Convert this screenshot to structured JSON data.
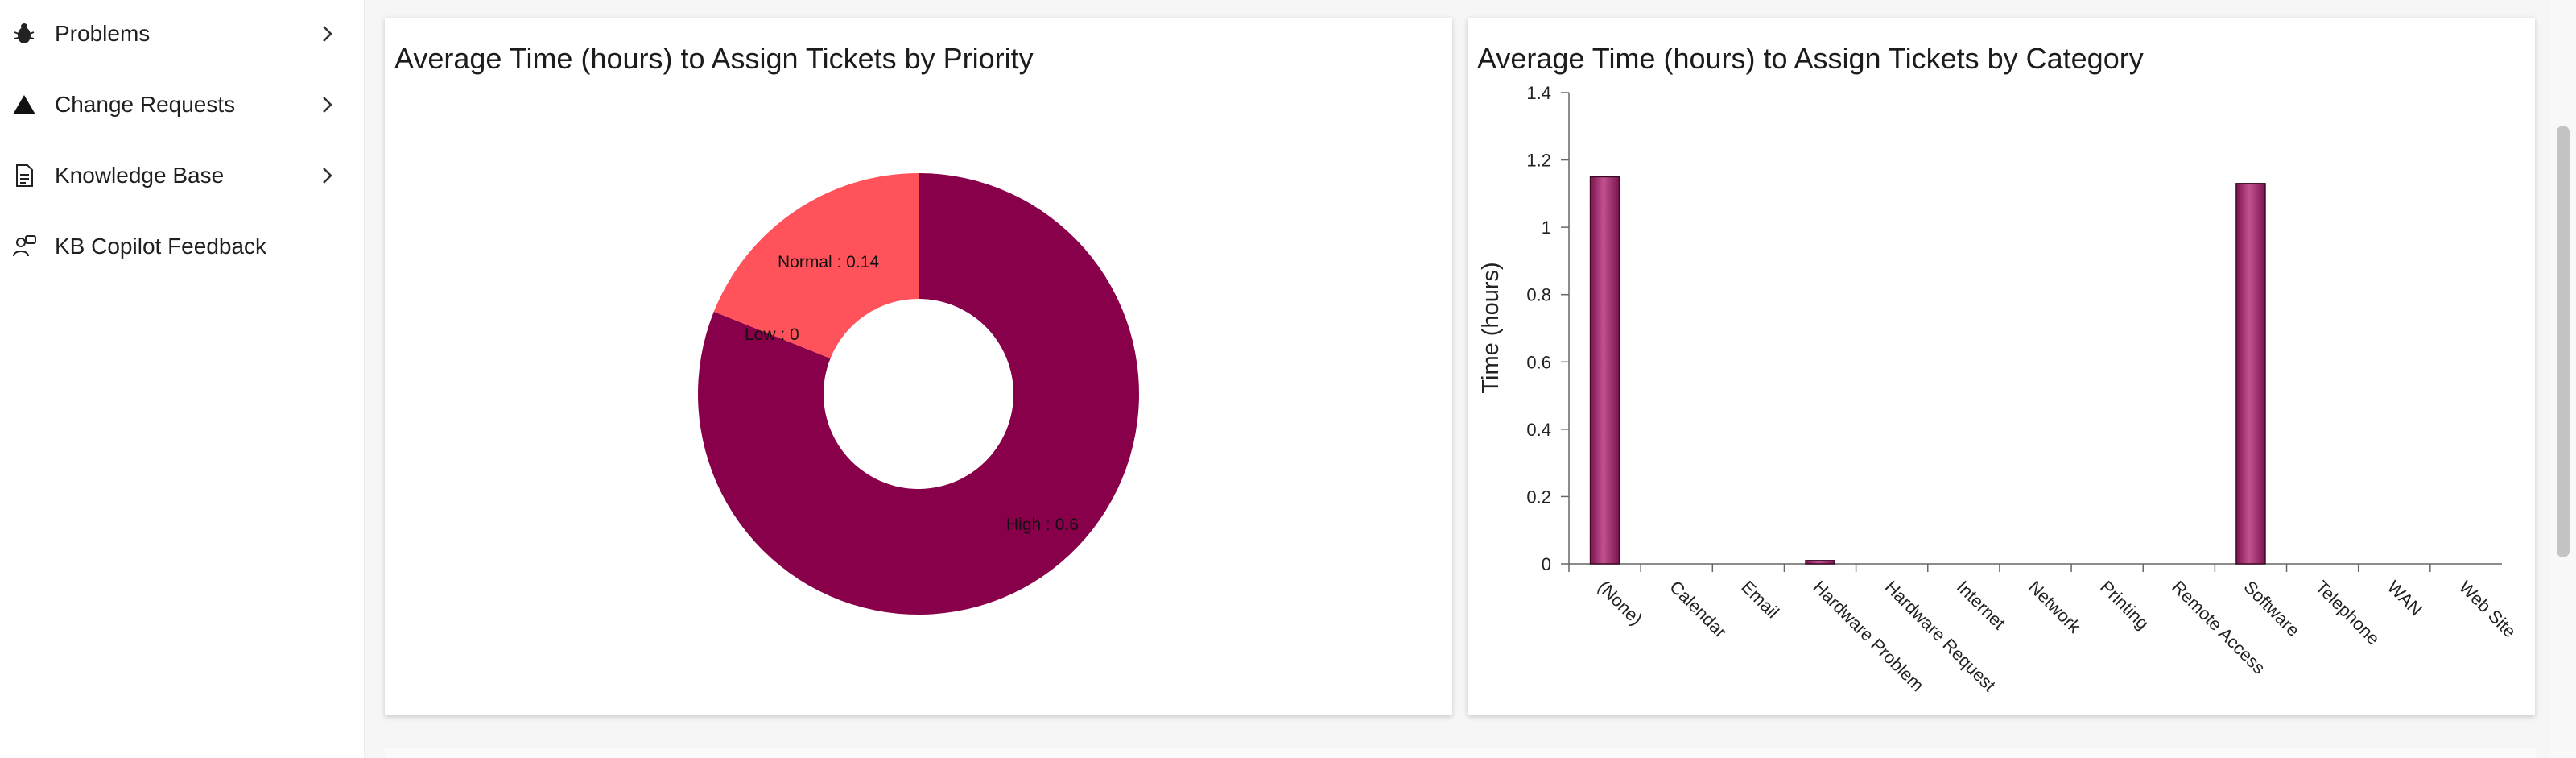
{
  "sidebar": {
    "items": [
      {
        "label": "Problems",
        "icon": "bug-icon",
        "has_chevron": true
      },
      {
        "label": "Change Requests",
        "icon": "triangle-icon",
        "has_chevron": true
      },
      {
        "label": "Knowledge Base",
        "icon": "document-icon",
        "has_chevron": true
      },
      {
        "label": "KB Copilot Feedback",
        "icon": "person-feedback-icon",
        "has_chevron": false
      }
    ]
  },
  "priority_chart": {
    "title": "Average Time (hours) to Assign Tickets by Priority",
    "chart_data": {
      "type": "pie",
      "donut": true,
      "slices": [
        {
          "label": "High : 0.6",
          "value": 0.6,
          "color": "#880049"
        },
        {
          "label": "Normal : 0.14",
          "value": 0.14,
          "color": "#ff525a"
        },
        {
          "label": "Low : 0",
          "value": 0,
          "color": "#c0c0c0"
        }
      ]
    }
  },
  "category_chart": {
    "title": "Average Time (hours) to Assign Tickets by Category",
    "chart_data": {
      "type": "bar",
      "ylabel": "Time (hours)",
      "ylim": [
        0,
        1.4
      ],
      "yticks": [
        "0",
        "0.2",
        "0.4",
        "0.6",
        "0.8",
        "1",
        "1.2",
        "1.4"
      ],
      "categories": [
        "(None)",
        "Calendar",
        "Email",
        "Hardware Problem",
        "Hardware Request",
        "Internet",
        "Network",
        "Printing",
        "Remote Access",
        "Software",
        "Telephone",
        "WAN",
        "Web Site"
      ],
      "values": [
        1.15,
        0,
        0,
        0.01,
        0,
        0,
        0,
        0,
        0,
        1.13,
        0,
        0,
        0
      ],
      "bar_color": "#992a6a"
    }
  }
}
